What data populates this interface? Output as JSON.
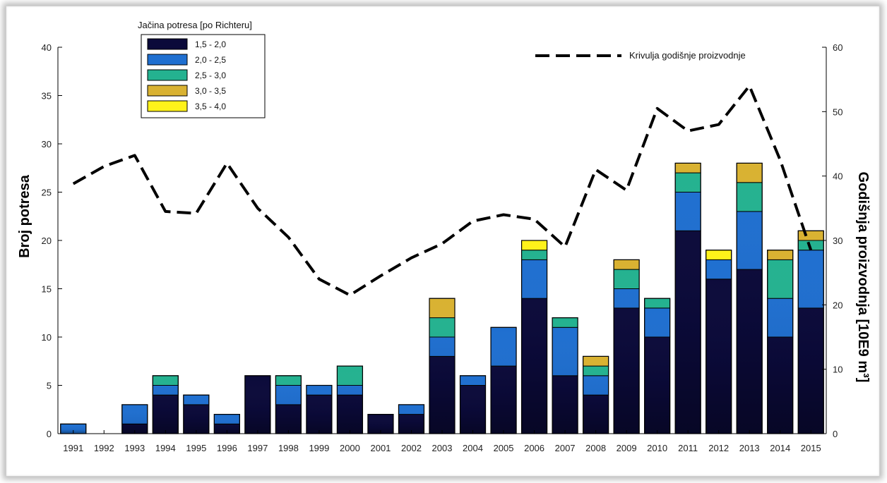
{
  "chart_data": {
    "type": "bar",
    "stacked": true,
    "categories": [
      "1991",
      "1992",
      "1993",
      "1994",
      "1995",
      "1996",
      "1997",
      "1998",
      "1999",
      "2000",
      "2001",
      "2002",
      "2003",
      "2004",
      "2005",
      "2006",
      "2007",
      "2008",
      "2009",
      "2010",
      "2011",
      "2012",
      "2013",
      "2014",
      "2015"
    ],
    "ylabel": "Broj potresa",
    "y2label": "Godišnja proizvodnja  [10E9 m³]",
    "ylim": [
      0,
      40
    ],
    "y2lim": [
      0,
      60
    ],
    "yticks": [
      0,
      5,
      10,
      15,
      20,
      25,
      30,
      35,
      40
    ],
    "y2ticks": [
      0,
      10,
      20,
      30,
      40,
      50,
      60
    ],
    "legend_title": "Jačina potresa [po Richteru]",
    "legend_position": "top-left",
    "series": [
      {
        "name": "1,5 - 2,0",
        "color": "#0b0a3a",
        "values": [
          0,
          0,
          1,
          4,
          3,
          1,
          6,
          3,
          4,
          4,
          2,
          2,
          8,
          5,
          7,
          14,
          6,
          4,
          13,
          10,
          21,
          16,
          17,
          10,
          13
        ]
      },
      {
        "name": "2,0 - 2,5",
        "color": "#1f6fd0",
        "values": [
          1,
          0,
          2,
          1,
          1,
          1,
          0,
          2,
          1,
          1,
          0,
          1,
          2,
          1,
          4,
          4,
          5,
          2,
          2,
          3,
          4,
          2,
          6,
          4,
          6
        ]
      },
      {
        "name": "2,5 - 3,0",
        "color": "#24b290",
        "values": [
          0,
          0,
          0,
          1,
          0,
          0,
          0,
          1,
          0,
          2,
          0,
          0,
          2,
          0,
          0,
          1,
          1,
          1,
          2,
          1,
          2,
          0,
          3,
          4,
          1
        ]
      },
      {
        "name": "3,0 - 3,5",
        "color": "#d9b232",
        "values": [
          0,
          0,
          0,
          0,
          0,
          0,
          0,
          0,
          0,
          0,
          0,
          0,
          2,
          0,
          0,
          0,
          0,
          1,
          1,
          0,
          1,
          0,
          2,
          1,
          1
        ]
      },
      {
        "name": "3,5 - 4,0",
        "color": "#fff21a",
        "values": [
          0,
          0,
          0,
          0,
          0,
          0,
          0,
          0,
          0,
          0,
          0,
          0,
          0,
          0,
          0,
          1,
          0,
          0,
          0,
          0,
          0,
          1,
          0,
          0,
          0
        ]
      }
    ],
    "line_series": {
      "name": "Krivulja godišnje proizvodnje",
      "axis": "right",
      "style": "dashed",
      "color": "#000000",
      "values": [
        38.8,
        41.5,
        43.2,
        34.5,
        34.2,
        42,
        35,
        30.5,
        24,
        21.5,
        24.5,
        27.3,
        29.5,
        33,
        34,
        33.3,
        29,
        41,
        37.8,
        50.5,
        47,
        48,
        54,
        42.5,
        28.5
      ]
    }
  }
}
